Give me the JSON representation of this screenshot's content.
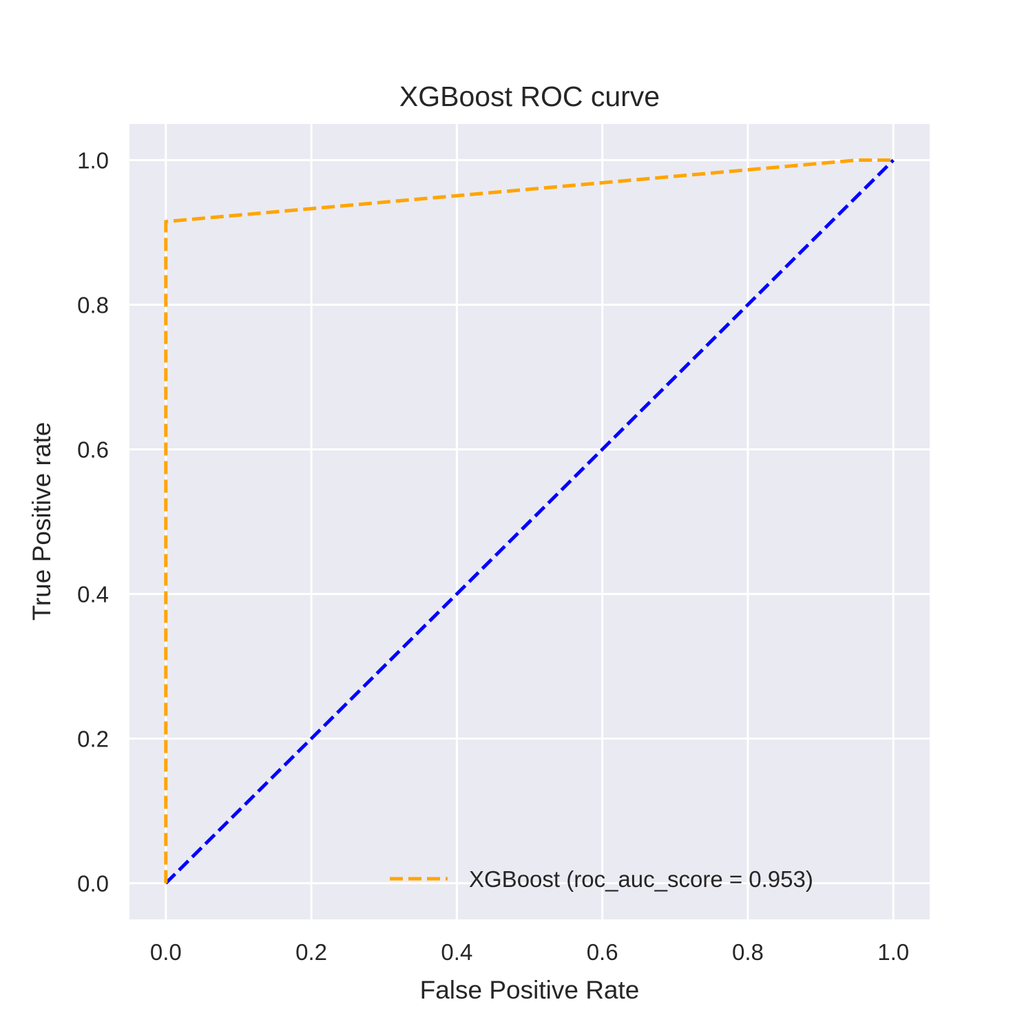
{
  "chart_data": {
    "type": "line",
    "title": "XGBoost ROC curve",
    "xlabel": "False Positive Rate",
    "ylabel": "True Positive rate",
    "xlim": [
      -0.05,
      1.05
    ],
    "ylim": [
      -0.05,
      1.05
    ],
    "xticks": [
      "0.0",
      "0.2",
      "0.4",
      "0.6",
      "0.8",
      "1.0"
    ],
    "yticks": [
      "0.0",
      "0.2",
      "0.4",
      "0.6",
      "0.8",
      "1.0"
    ],
    "grid": true,
    "legend_position": "lower right",
    "background_color": "#eaeaf2",
    "series": [
      {
        "name": "XGBoost (roc_auc_score = 0.953)",
        "color": "#ffa500",
        "style": "dashed",
        "in_legend": true,
        "x": [
          0.0,
          0.0,
          0.0,
          0.95,
          1.0
        ],
        "y": [
          0.0,
          0.907,
          0.915,
          1.0,
          1.0
        ]
      },
      {
        "name": "",
        "color": "#0000ff",
        "style": "dashed",
        "in_legend": false,
        "x": [
          0.0,
          1.0
        ],
        "y": [
          0.0,
          1.0
        ]
      }
    ]
  }
}
